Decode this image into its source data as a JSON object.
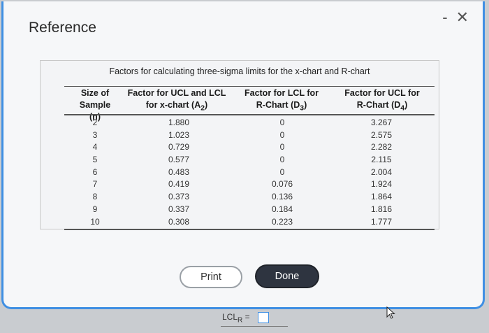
{
  "window": {
    "title": "Reference",
    "minimize_label": "-",
    "close_label": "✕"
  },
  "table": {
    "caption": "Factors for calculating three-sigma limits for the x-chart and R-chart",
    "headers": {
      "n_line1": "Size of Sample",
      "n_line2": "(n)",
      "a2_line1": "Factor for UCL and LCL",
      "a2_line2": "for x-chart (A",
      "a2_sub": "2",
      "a2_close": ")",
      "d3_line1": "Factor for LCL for",
      "d3_line2": "R-Chart (D",
      "d3_sub": "3",
      "d3_close": ")",
      "d4_line1": "Factor for UCL for",
      "d4_line2": "R-Chart (D",
      "d4_sub": "4",
      "d4_close": ")"
    },
    "n": [
      "2",
      "3",
      "4",
      "5",
      "6",
      "7",
      "8",
      "9",
      "10"
    ],
    "a2": [
      "1.880",
      "1.023",
      "0.729",
      "0.577",
      "0.483",
      "0.419",
      "0.373",
      "0.337",
      "0.308"
    ],
    "d3": [
      "0",
      "0",
      "0",
      "0",
      "0",
      "0.076",
      "0.136",
      "0.184",
      "0.223"
    ],
    "d4": [
      "3.267",
      "2.575",
      "2.282",
      "2.115",
      "2.004",
      "1.924",
      "1.864",
      "1.816",
      "1.777"
    ]
  },
  "buttons": {
    "print": "Print",
    "done": "Done"
  },
  "background": {
    "lcl_label": "LCL",
    "lcl_sub": "R",
    "equals": "="
  },
  "colors": {
    "accent": "#3f8fe3",
    "done_bg": "#2e3440"
  }
}
